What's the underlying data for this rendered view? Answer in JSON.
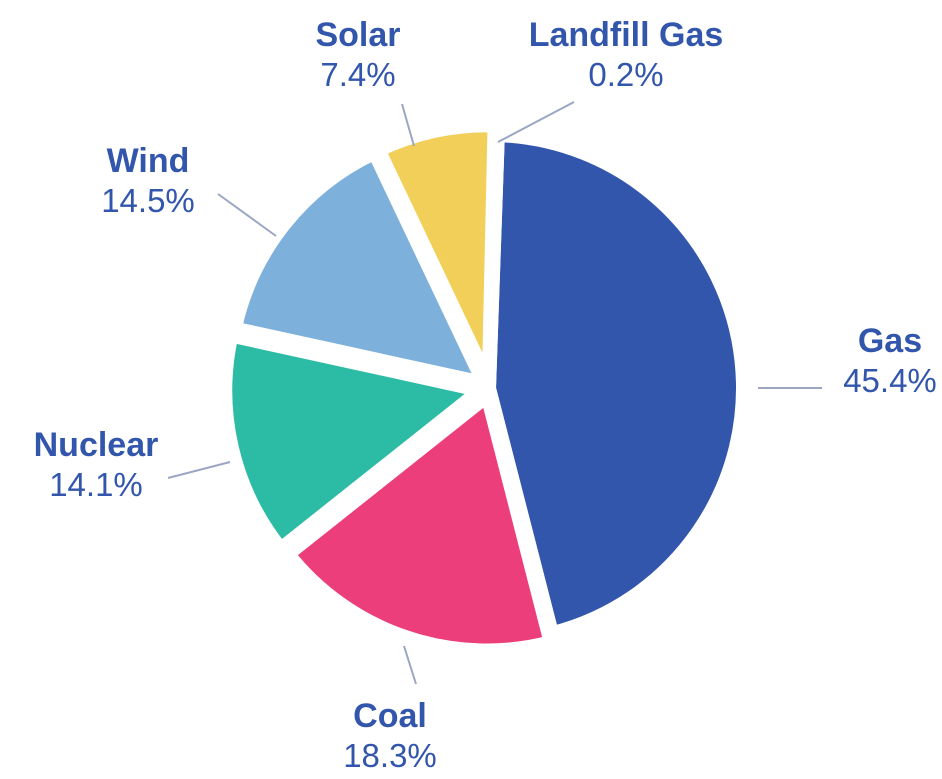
{
  "chart_data": {
    "type": "pie",
    "title": "",
    "slices": [
      {
        "label": "Gas",
        "value_label": "45.4%",
        "value": 45.4,
        "color": "#3356ad"
      },
      {
        "label": "Coal",
        "value_label": "18.3%",
        "value": 18.3,
        "color": "#ec3e7a"
      },
      {
        "label": "Nuclear",
        "value_label": "14.1%",
        "value": 14.1,
        "color": "#2cbba4"
      },
      {
        "label": "Wind",
        "value_label": "14.5%",
        "value": 14.5,
        "color": "#7eb0dc"
      },
      {
        "label": "Solar",
        "value_label": "7.4%",
        "value": 7.4,
        "color": "#f2cf58"
      },
      {
        "label": "Landfill Gas",
        "value_label": "0.2%",
        "value": 0.2,
        "color": "#2e3a6e"
      }
    ],
    "label_color": "#3356ad",
    "legend": "none"
  }
}
